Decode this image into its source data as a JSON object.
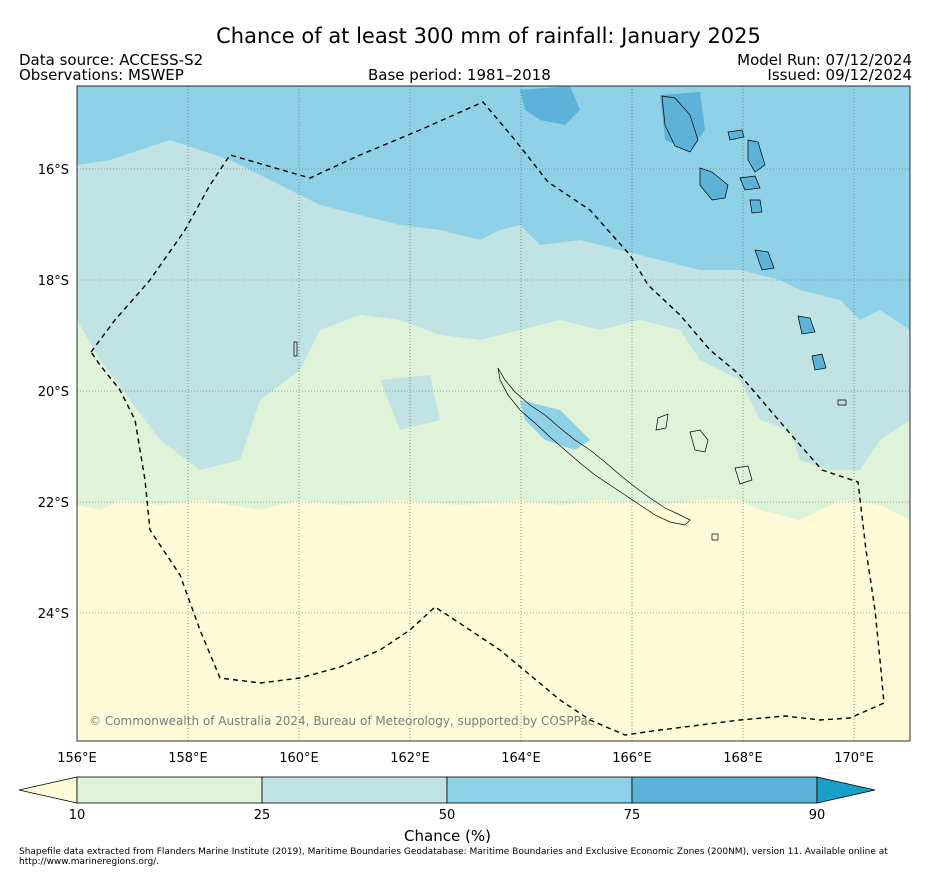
{
  "title": "Chance of at least 300 mm of rainfall: January 2025",
  "header": {
    "data_source": "Data source: ACCESS-S2",
    "observations": "Observations: MSWEP",
    "base_period": "Base period: 1981–2018",
    "model_run": "Model Run: 07/12/2024",
    "issued": "Issued: 09/12/2024"
  },
  "map": {
    "lat_labels": [
      "16°S",
      "18°S",
      "20°S",
      "22°S",
      "24°S"
    ],
    "lon_labels": [
      "156°E",
      "158°E",
      "160°E",
      "162°E",
      "164°E",
      "166°E",
      "168°E",
      "170°E"
    ],
    "copyright": "© Commonwealth of Australia 2024, Bureau of Meteorology, supported by COSPPac",
    "colors": {
      "below_10": "#fffad8",
      "10_25": "#dff3d9",
      "25_50": "#c2e3e3",
      "50_75": "#8fd2e7",
      "75_90": "#5db3d7",
      "above_90": "#1aa0c8"
    }
  },
  "colorbar": {
    "ticks": [
      "10",
      "25",
      "50",
      "75",
      "90"
    ],
    "label": "Chance (%)"
  },
  "footer": "Shapefile data extracted from Flanders Marine Institute (2019), Maritime Boundaries Geodatabase: Maritime Boundaries and Exclusive Economic Zones (200NM), version 11. Available online at http://www.marineregions.org/."
}
